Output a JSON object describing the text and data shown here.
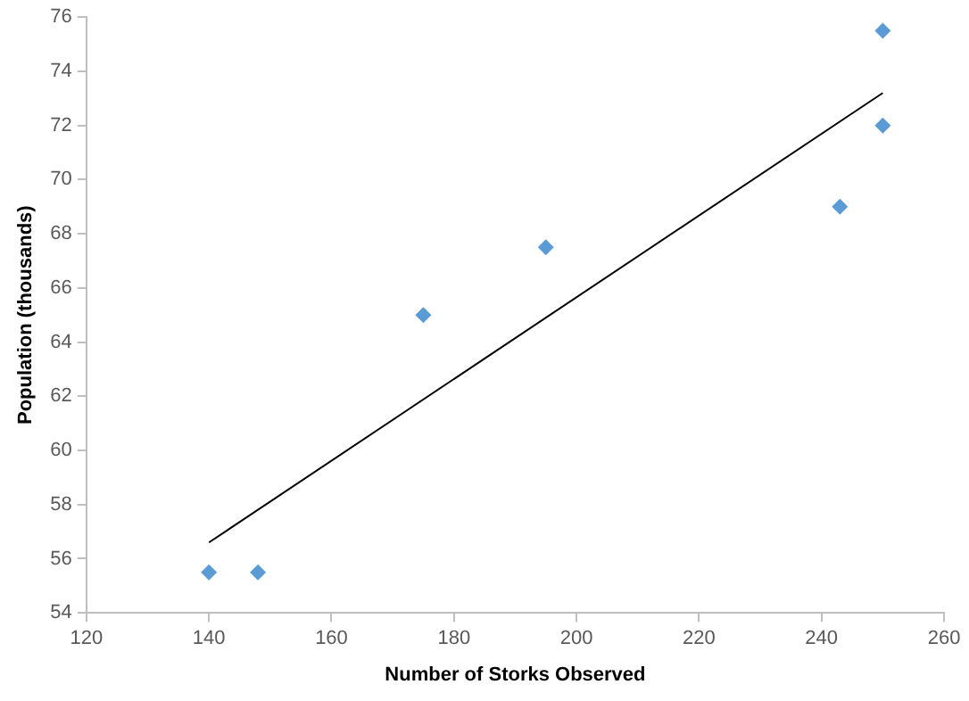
{
  "chart_data": {
    "type": "scatter",
    "xlabel": "Number of Storks Observed",
    "ylabel": "Population (thousands)",
    "xlim": [
      120,
      260
    ],
    "xticks": [
      120,
      140,
      160,
      180,
      200,
      220,
      240,
      260
    ],
    "ylim": [
      54,
      76
    ],
    "yticks": [
      54,
      56,
      58,
      60,
      62,
      64,
      66,
      68,
      70,
      72,
      74,
      76
    ],
    "grid": false,
    "legend": false,
    "marker": "diamond",
    "series": [
      {
        "color": "#5b9bd5",
        "x": [
          140,
          148,
          175,
          195,
          243,
          250,
          250
        ],
        "values": [
          55.5,
          55.5,
          65,
          67.5,
          69,
          72,
          75.5
        ]
      },
      {
        "type": "line",
        "color": "#000000",
        "marker": "none",
        "x": [
          140,
          250
        ],
        "values": [
          56.6,
          73.2
        ]
      }
    ]
  }
}
